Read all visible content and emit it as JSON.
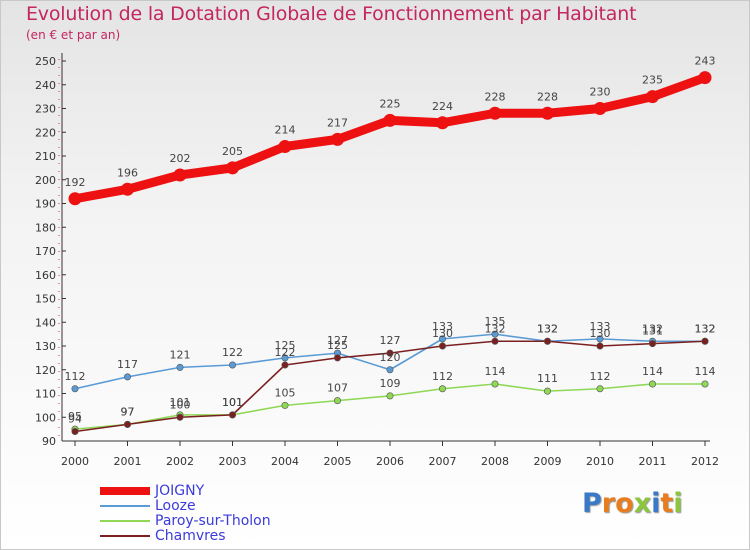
{
  "header": {
    "title": "Evolution de la Dotation Globale de Fonctionnement par Habitant",
    "subtitle": "(en € et par an)"
  },
  "colors": {
    "title": "#c4265f",
    "legend_text": "#3b3bdb",
    "JOIGNY": "#ee1111",
    "Looze": "#5b9bd5",
    "Paroy-sur-Tholon": "#8fd855",
    "Chamvres": "#7b2020"
  },
  "chart_data": {
    "type": "line",
    "title": "Evolution de la Dotation Globale de Fonctionnement par Habitant",
    "subtitle": "(en € et par an)",
    "xlabel": "",
    "ylabel": "",
    "x": [
      "2000",
      "2001",
      "2002",
      "2003",
      "2004",
      "2005",
      "2006",
      "2007",
      "2008",
      "2009",
      "2010",
      "2011",
      "2012"
    ],
    "ylim": [
      90,
      250
    ],
    "yticks": [
      90,
      100,
      110,
      120,
      130,
      140,
      150,
      160,
      170,
      180,
      190,
      200,
      210,
      220,
      230,
      240,
      250
    ],
    "grid": false,
    "legend_position": "bottom-left",
    "series": [
      {
        "name": "JOIGNY",
        "values": [
          192,
          196,
          202,
          205,
          214,
          217,
          225,
          224,
          228,
          228,
          230,
          235,
          243
        ],
        "emphasis": true
      },
      {
        "name": "Looze",
        "values": [
          112,
          117,
          121,
          122,
          125,
          127,
          120,
          133,
          135,
          132,
          133,
          132,
          132
        ]
      },
      {
        "name": "Paroy-sur-Tholon",
        "values": [
          95,
          97,
          101,
          101,
          105,
          107,
          109,
          112,
          114,
          111,
          112,
          114,
          114
        ]
      },
      {
        "name": "Chamvres",
        "values": [
          94,
          97,
          100,
          101,
          122,
          125,
          127,
          130,
          132,
          132,
          130,
          131,
          132
        ]
      }
    ]
  },
  "legend": {
    "items": [
      "JOIGNY",
      "Looze",
      "Paroy-sur-Tholon",
      "Chamvres"
    ]
  },
  "logo": {
    "letters": [
      "P",
      "r",
      "o",
      "x",
      "i",
      "t",
      "i"
    ],
    "colors": [
      "#3a78c8",
      "#e87d1e",
      "#e87d1e",
      "#8cc63f",
      "#3a78c8",
      "#e87d1e",
      "#8cc63f"
    ]
  }
}
